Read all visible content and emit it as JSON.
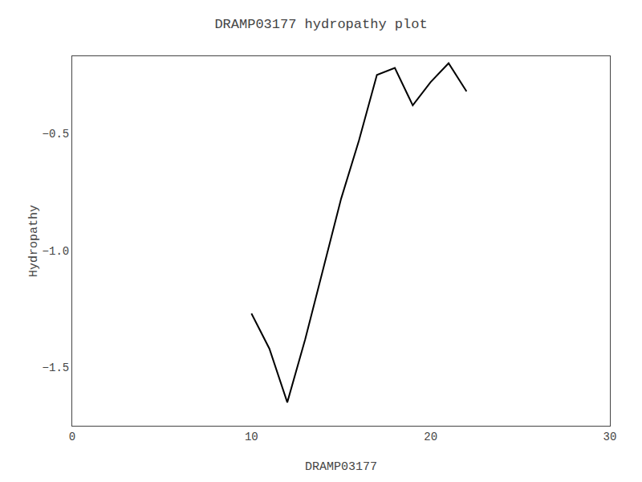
{
  "chart_data": {
    "type": "line",
    "title": "DRAMP03177 hydropathy plot",
    "xlabel": "DRAMP03177",
    "ylabel": "Hydropathy",
    "x": [
      10,
      11,
      12,
      13,
      14,
      15,
      16,
      17,
      18,
      19,
      20,
      21,
      22
    ],
    "values": [
      -1.27,
      -1.42,
      -1.65,
      -1.38,
      -1.08,
      -0.78,
      -0.53,
      -0.25,
      -0.22,
      -0.38,
      -0.28,
      -0.2,
      -0.32
    ],
    "color": "#000000",
    "xlim": [
      0,
      30
    ],
    "xticks": [
      0,
      10,
      20,
      30
    ],
    "ylim": [
      -1.75,
      -0.17
    ],
    "yticks": [
      {
        "value": -1.5,
        "label": "−1.5"
      },
      {
        "value": -1.0,
        "label": "−1.0"
      },
      {
        "value": -0.5,
        "label": "−0.5"
      }
    ],
    "grid": false
  }
}
